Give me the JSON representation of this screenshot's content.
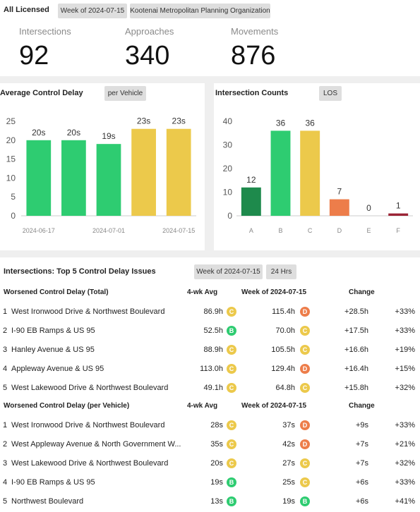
{
  "header": {
    "title": "All Licensed",
    "chips": [
      "Week of 2024-07-15",
      "Kootenai Metropolitan Planning Organization"
    ]
  },
  "kpis": [
    {
      "label": "Intersections",
      "value": 92
    },
    {
      "label": "Approaches",
      "value": 340
    },
    {
      "label": "Movements",
      "value": 876
    }
  ],
  "chart_data": [
    {
      "type": "bar",
      "title": "Average Control Delay",
      "chip": "per Vehicle",
      "categories": [
        "2024-06-17",
        null,
        "2024-07-01",
        null,
        "2024-07-15"
      ],
      "values": [
        20,
        20,
        19,
        23,
        23
      ],
      "value_labels": [
        "20s",
        "20s",
        "19s",
        "23s",
        "23s"
      ],
      "colors": [
        "#2ecc71",
        "#2ecc71",
        "#2ecc71",
        "#ecc94b",
        "#ecc94b"
      ],
      "ylim": [
        0,
        25
      ],
      "yticks": [
        0,
        5,
        10,
        15,
        20,
        25
      ],
      "grid": false
    },
    {
      "type": "bar",
      "title": "Intersection Counts",
      "chip": "LOS",
      "categories": [
        "A",
        "B",
        "C",
        "D",
        "E",
        "F"
      ],
      "values": [
        12,
        36,
        36,
        7,
        0,
        1
      ],
      "colors": [
        "#1e8a4c",
        "#2ecc71",
        "#ecc94b",
        "#ed7d4a",
        "#ed7d4a",
        "#9b2335"
      ],
      "ylim": [
        0,
        40
      ],
      "yticks": [
        0,
        10,
        20,
        30,
        40
      ],
      "grid": false
    }
  ],
  "table": {
    "title": "Intersections: Top 5 Control Delay Issues",
    "chips": [
      "Week of 2024-07-15",
      "24 Hrs"
    ],
    "groups": [
      {
        "columns": [
          "Worsened Control Delay (Total)",
          "4-wk Avg",
          "Week of 2024-07-15",
          "Change"
        ],
        "rows": [
          {
            "rank": 1,
            "name": "West Ironwood Drive & Northwest Boulevard",
            "avg": "86.9h",
            "avg_los": "C",
            "week": "115.4h",
            "week_los": "D",
            "change": "+28.5h",
            "pct": "+33%"
          },
          {
            "rank": 2,
            "name": "I-90 EB Ramps & US 95",
            "avg": "52.5h",
            "avg_los": "B",
            "week": "70.0h",
            "week_los": "C",
            "change": "+17.5h",
            "pct": "+33%"
          },
          {
            "rank": 3,
            "name": "Hanley Avenue & US 95",
            "avg": "88.9h",
            "avg_los": "C",
            "week": "105.5h",
            "week_los": "C",
            "change": "+16.6h",
            "pct": "+19%"
          },
          {
            "rank": 4,
            "name": "Appleway Avenue & US 95",
            "avg": "113.0h",
            "avg_los": "C",
            "week": "129.4h",
            "week_los": "D",
            "change": "+16.4h",
            "pct": "+15%"
          },
          {
            "rank": 5,
            "name": "West Lakewood Drive & Northwest Boulevard",
            "avg": "49.1h",
            "avg_los": "C",
            "week": "64.8h",
            "week_los": "C",
            "change": "+15.8h",
            "pct": "+32%"
          }
        ]
      },
      {
        "columns": [
          "Worsened Control Delay (per Vehicle)",
          "4-wk Avg",
          "Week of 2024-07-15",
          "Change"
        ],
        "rows": [
          {
            "rank": 1,
            "name": "West Ironwood Drive & Northwest Boulevard",
            "avg": "28s",
            "avg_los": "C",
            "week": "37s",
            "week_los": "D",
            "change": "+9s",
            "pct": "+33%"
          },
          {
            "rank": 2,
            "name": "West Appleway Avenue & North Government W...",
            "avg": "35s",
            "avg_los": "C",
            "week": "42s",
            "week_los": "D",
            "change": "+7s",
            "pct": "+21%"
          },
          {
            "rank": 3,
            "name": "West Lakewood Drive & Northwest Boulevard",
            "avg": "20s",
            "avg_los": "C",
            "week": "27s",
            "week_los": "C",
            "change": "+7s",
            "pct": "+32%"
          },
          {
            "rank": 4,
            "name": "I-90 EB Ramps & US 95",
            "avg": "19s",
            "avg_los": "B",
            "week": "25s",
            "week_los": "C",
            "change": "+6s",
            "pct": "+33%"
          },
          {
            "rank": 5,
            "name": "Northwest Boulevard",
            "avg": "13s",
            "avg_los": "B",
            "week": "19s",
            "week_los": "B",
            "change": "+6s",
            "pct": "+41%"
          }
        ]
      }
    ]
  },
  "los_colors": {
    "A": "#1e8a4c",
    "B": "#2ecc71",
    "C": "#ecc94b",
    "D": "#ed7d4a",
    "E": "#ed7d4a",
    "F": "#9b2335"
  }
}
